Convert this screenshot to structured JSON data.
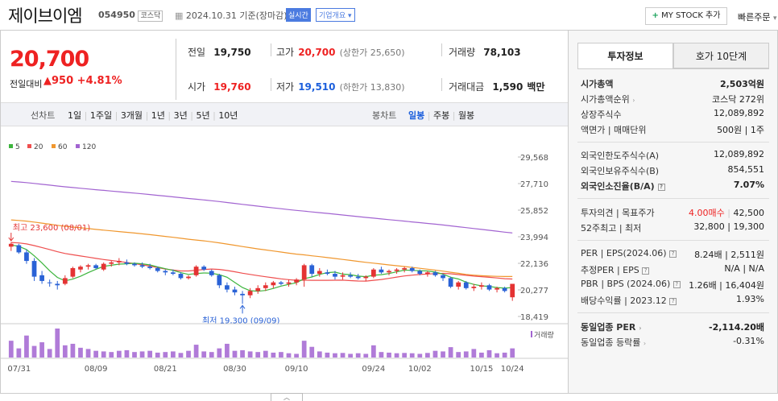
{
  "header": {
    "stock_name": "제이브이엠",
    "stock_code": "054950",
    "market_tag": "코스닥",
    "date_text": "2024.10.31 기준(장마감)",
    "live_label": "실시간",
    "company_info_label": "기업개요",
    "my_stock_label": "MY STOCK 추가",
    "quick_order_label": "빠른주문"
  },
  "price": {
    "current": "20,700",
    "change_label": "전일대비",
    "change": "950",
    "change_pct": "+4.81%",
    "prev_label": "전일",
    "prev": "19,750",
    "high_label": "고가",
    "high": "20,700",
    "upper_limit": "(상한가 25,650)",
    "volume_label": "거래량",
    "volume": "78,103",
    "open_label": "시가",
    "open": "19,760",
    "low_label": "저가",
    "low": "19,510",
    "lower_limit": "(하한가 13,830)",
    "amount_label": "거래대금",
    "amount": "1,590",
    "amount_unit": "백만"
  },
  "period_tabs": {
    "line_label": "선차트",
    "items": [
      "1일",
      "1주일",
      "3개월",
      "1년",
      "3년",
      "5년",
      "10년"
    ],
    "candle_label": "봉차트",
    "candle_items": [
      "일봉",
      "주봉",
      "월봉"
    ],
    "active_candle": "일봉"
  },
  "chart_data": {
    "type": "candlestick",
    "legend": [
      {
        "name": "5",
        "color": "#3db53d"
      },
      {
        "name": "20",
        "color": "#ef4f4f"
      },
      {
        "name": "60",
        "color": "#f0972e"
      },
      {
        "name": "120",
        "color": "#a264d1"
      }
    ],
    "y_ticks": [
      "29,568",
      "27,710",
      "25,852",
      "23,994",
      "22,136",
      "20,277",
      "18,419"
    ],
    "ylim": [
      18419,
      29568
    ],
    "x_ticks": [
      "07/31",
      "08/09",
      "08/21",
      "08/30",
      "09/10",
      "09/24",
      "10/02",
      "10/15",
      "10/24"
    ],
    "high_annotation": "최고 23,600 (08/01)",
    "low_annotation": "최저 19,300 (09/09)",
    "volume_label": "거래량",
    "candles": [
      {
        "o": 23300,
        "h": 23600,
        "l": 23000,
        "c": 23500
      },
      {
        "o": 23400,
        "h": 23500,
        "l": 22800,
        "c": 22900
      },
      {
        "o": 22900,
        "h": 23100,
        "l": 22100,
        "c": 22300
      },
      {
        "o": 22300,
        "h": 22500,
        "l": 20900,
        "c": 21200
      },
      {
        "o": 21300,
        "h": 21600,
        "l": 20700,
        "c": 20900
      },
      {
        "o": 20800,
        "h": 21000,
        "l": 20500,
        "c": 20750
      },
      {
        "o": 20700,
        "h": 20900,
        "l": 20300,
        "c": 20600
      },
      {
        "o": 20700,
        "h": 21300,
        "l": 20600,
        "c": 21100
      },
      {
        "o": 21200,
        "h": 21900,
        "l": 21100,
        "c": 21800
      },
      {
        "o": 21700,
        "h": 22000,
        "l": 21500,
        "c": 21900
      },
      {
        "o": 21900,
        "h": 22100,
        "l": 21700,
        "c": 22000
      },
      {
        "o": 22000,
        "h": 22100,
        "l": 21700,
        "c": 21800
      },
      {
        "o": 21700,
        "h": 22200,
        "l": 21600,
        "c": 22100
      },
      {
        "o": 22100,
        "h": 22300,
        "l": 21900,
        "c": 22200
      },
      {
        "o": 22200,
        "h": 22500,
        "l": 22000,
        "c": 22300
      },
      {
        "o": 22200,
        "h": 22400,
        "l": 22000,
        "c": 22100
      },
      {
        "o": 22100,
        "h": 22200,
        "l": 21900,
        "c": 22000
      },
      {
        "o": 22000,
        "h": 22200,
        "l": 21800,
        "c": 21900
      },
      {
        "o": 21900,
        "h": 22100,
        "l": 21700,
        "c": 21800
      },
      {
        "o": 21800,
        "h": 21900,
        "l": 21500,
        "c": 21600
      },
      {
        "o": 21600,
        "h": 21700,
        "l": 21300,
        "c": 21500
      },
      {
        "o": 21500,
        "h": 21700,
        "l": 21300,
        "c": 21400
      },
      {
        "o": 21400,
        "h": 21500,
        "l": 21000,
        "c": 21100
      },
      {
        "o": 21100,
        "h": 21300,
        "l": 21000,
        "c": 21200
      },
      {
        "o": 21300,
        "h": 22000,
        "l": 21200,
        "c": 21900
      },
      {
        "o": 21900,
        "h": 22000,
        "l": 21600,
        "c": 21700
      },
      {
        "o": 21600,
        "h": 21700,
        "l": 21200,
        "c": 21300
      },
      {
        "o": 21300,
        "h": 21400,
        "l": 20400,
        "c": 20600
      },
      {
        "o": 20600,
        "h": 20800,
        "l": 20100,
        "c": 20300
      },
      {
        "o": 20300,
        "h": 20500,
        "l": 19900,
        "c": 20100
      },
      {
        "o": 20000,
        "h": 20200,
        "l": 19300,
        "c": 19900
      },
      {
        "o": 19900,
        "h": 20400,
        "l": 19700,
        "c": 20200
      },
      {
        "o": 20200,
        "h": 20600,
        "l": 20000,
        "c": 20400
      },
      {
        "o": 20400,
        "h": 20800,
        "l": 20200,
        "c": 20600
      },
      {
        "o": 20600,
        "h": 20900,
        "l": 20400,
        "c": 20800
      },
      {
        "o": 20800,
        "h": 20900,
        "l": 20600,
        "c": 20700
      },
      {
        "o": 20700,
        "h": 21000,
        "l": 20500,
        "c": 20800
      },
      {
        "o": 20800,
        "h": 21100,
        "l": 20600,
        "c": 21000
      },
      {
        "o": 21000,
        "h": 22100,
        "l": 20500,
        "c": 22000
      },
      {
        "o": 22000,
        "h": 22100,
        "l": 21200,
        "c": 21400
      },
      {
        "o": 21400,
        "h": 21800,
        "l": 21200,
        "c": 21600
      },
      {
        "o": 21500,
        "h": 21700,
        "l": 21300,
        "c": 21400
      },
      {
        "o": 21400,
        "h": 21600,
        "l": 21000,
        "c": 21200
      },
      {
        "o": 21200,
        "h": 21500,
        "l": 21000,
        "c": 21300
      },
      {
        "o": 21300,
        "h": 21500,
        "l": 21100,
        "c": 21200
      },
      {
        "o": 21200,
        "h": 21400,
        "l": 21000,
        "c": 21100
      },
      {
        "o": 21100,
        "h": 21300,
        "l": 20900,
        "c": 21200
      },
      {
        "o": 21200,
        "h": 21800,
        "l": 21100,
        "c": 21700
      },
      {
        "o": 21700,
        "h": 21900,
        "l": 21400,
        "c": 21500
      },
      {
        "o": 21500,
        "h": 21700,
        "l": 21300,
        "c": 21600
      },
      {
        "o": 21600,
        "h": 21800,
        "l": 21400,
        "c": 21700
      },
      {
        "o": 21700,
        "h": 21900,
        "l": 21500,
        "c": 21800
      },
      {
        "o": 21800,
        "h": 21900,
        "l": 21500,
        "c": 21600
      },
      {
        "o": 21600,
        "h": 21700,
        "l": 21300,
        "c": 21400
      },
      {
        "o": 21400,
        "h": 21600,
        "l": 21200,
        "c": 21500
      },
      {
        "o": 21500,
        "h": 21600,
        "l": 21200,
        "c": 21300
      },
      {
        "o": 21300,
        "h": 21400,
        "l": 20900,
        "c": 21100
      },
      {
        "o": 21100,
        "h": 21200,
        "l": 20400,
        "c": 20500
      },
      {
        "o": 20500,
        "h": 20900,
        "l": 20300,
        "c": 20800
      },
      {
        "o": 20800,
        "h": 20900,
        "l": 20300,
        "c": 20400
      },
      {
        "o": 20400,
        "h": 20700,
        "l": 20200,
        "c": 20500
      },
      {
        "o": 20500,
        "h": 20800,
        "l": 20300,
        "c": 20600
      },
      {
        "o": 20600,
        "h": 20700,
        "l": 20200,
        "c": 20300
      },
      {
        "o": 20300,
        "h": 20500,
        "l": 20100,
        "c": 20400
      },
      {
        "o": 20400,
        "h": 20500,
        "l": 20100,
        "c": 20200
      },
      {
        "o": 19760,
        "h": 20700,
        "l": 19510,
        "c": 20700
      }
    ],
    "volumes": [
      55,
      30,
      72,
      38,
      50,
      28,
      95,
      40,
      45,
      32,
      28,
      22,
      20,
      18,
      22,
      24,
      18,
      20,
      22,
      16,
      18,
      20,
      15,
      22,
      42,
      20,
      18,
      30,
      45,
      22,
      24,
      20,
      18,
      22,
      16,
      18,
      14,
      12,
      55,
      35,
      20,
      16,
      14,
      15,
      12,
      14,
      12,
      40,
      18,
      16,
      14,
      15,
      14,
      12,
      15,
      22,
      20,
      34,
      18,
      20,
      28,
      16,
      24,
      14,
      16,
      30
    ]
  },
  "side": {
    "tab_invest": "투자정보",
    "tab_quote": "호가 10단계",
    "market_cap_label": "시가총액",
    "market_cap": "2,503억원",
    "cap_rank_label": "시가총액순위",
    "cap_rank": "코스닥 272위",
    "shares_label": "상장주식수",
    "shares": "12,089,892",
    "par_label": "액면가 | 매매단위",
    "par": "500원 | 1주",
    "foreign_limit_label": "외국인한도주식수(A)",
    "foreign_limit": "12,089,892",
    "foreign_own_label": "외국인보유주식수(B)",
    "foreign_own": "854,551",
    "foreign_rate_label": "외국인소진율(B/A)",
    "foreign_rate": "7.07%",
    "opinion_label": "투자의견 | 목표주가",
    "opinion": "4.00매수",
    "target": "42,500",
    "w52_label": "52주최고 | 최저",
    "w52": "32,800 | 19,300",
    "per_label": "PER | EPS(2024.06)",
    "per": "8.24배 | 2,511원",
    "est_per_label": "추정PER | EPS",
    "est_per": "N/A | N/A",
    "pbr_label": "PBR | BPS (2024.06)",
    "pbr": "1.26배 | 16,404원",
    "div_label": "배당수익률 | 2023.12",
    "div": "1.93%",
    "sector_per_label": "동일업종 PER",
    "sector_per": "-2,114.20배",
    "sector_rate_label": "동일업종 등락률",
    "sector_rate": "-0.31%"
  }
}
